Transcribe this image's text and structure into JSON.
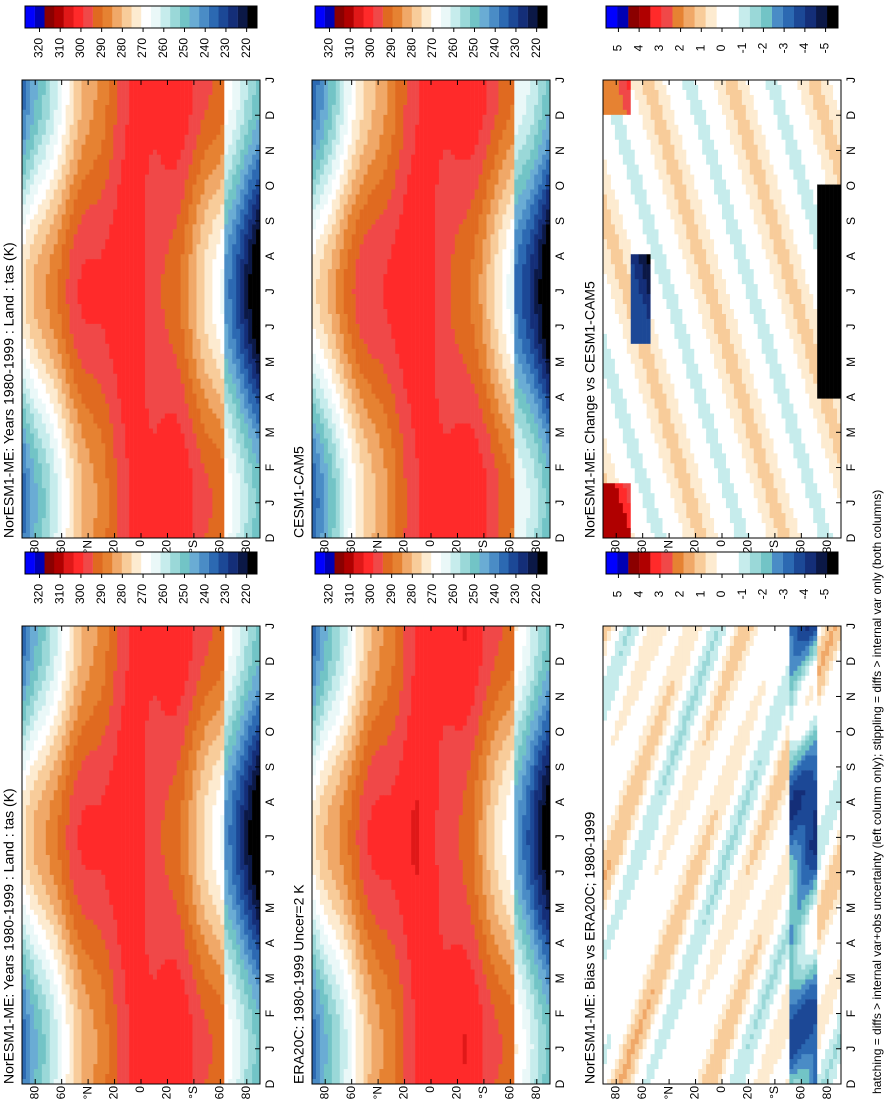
{
  "chart_data": [
    {
      "type": "contour",
      "title": "NorESM1-ME: Years 1980-1999 : Land : tas (K)",
      "categories": [
        "D",
        "J",
        "F",
        "M",
        "A",
        "M",
        "J",
        "J",
        "A",
        "S",
        "O",
        "N",
        "D",
        "J"
      ],
      "ylim": [
        -90,
        90
      ],
      "yticks": [
        {
          "value": 80,
          "label": "80"
        },
        {
          "value": 60,
          "label": "60"
        },
        {
          "value": 40,
          "label": "°N"
        },
        {
          "value": 20,
          "label": "20"
        },
        0,
        {
          "value": -20,
          "label": "20"
        },
        {
          "value": -40,
          "label": "°S"
        },
        {
          "value": -60,
          "label": "60"
        },
        {
          "value": -80,
          "label": "80"
        }
      ],
      "clim": [
        215,
        327
      ],
      "cticks": [
        320,
        310,
        300,
        290,
        280,
        270,
        260,
        250,
        240,
        230,
        220
      ],
      "colors": [
        "#000000",
        "#0b1846",
        "#142e78",
        "#1c4896",
        "#2c69b2",
        "#4a8cc6",
        "#6aacd4",
        "#72c4c6",
        "#9ad8d8",
        "#c6ecec",
        "#eaf8f8",
        "#ffffff",
        "#fdebd0",
        "#f8cc9a",
        "#f0a868",
        "#e68232",
        "#e06a20",
        "#f04848",
        "#ff2a2a",
        "#e01818",
        "#b00000",
        "#8b0000",
        "#0000b4",
        "#0000ff"
      ]
    },
    {
      "type": "contour",
      "title": "NorESM1-ME: Years 1980-1999 : Land : tas (K)",
      "categories": [
        "D",
        "J",
        "F",
        "M",
        "A",
        "M",
        "J",
        "J",
        "A",
        "S",
        "O",
        "N",
        "D",
        "J"
      ],
      "ylim": [
        -90,
        90
      ],
      "yticks": [
        {
          "value": 80,
          "label": "80"
        },
        {
          "value": 60,
          "label": "60"
        },
        {
          "value": 40,
          "label": "°N"
        },
        {
          "value": 20,
          "label": "20"
        },
        0,
        {
          "value": -20,
          "label": "20"
        },
        {
          "value": -40,
          "label": "°S"
        },
        {
          "value": -60,
          "label": "60"
        },
        {
          "value": -80,
          "label": "80"
        }
      ],
      "clim": [
        215,
        327
      ],
      "cticks": [
        320,
        310,
        300,
        290,
        280,
        270,
        260,
        250,
        240,
        230,
        220
      ],
      "colors": [
        "#000000",
        "#0b1846",
        "#142e78",
        "#1c4896",
        "#2c69b2",
        "#4a8cc6",
        "#6aacd4",
        "#72c4c6",
        "#9ad8d8",
        "#c6ecec",
        "#eaf8f8",
        "#ffffff",
        "#fdebd0",
        "#f8cc9a",
        "#f0a868",
        "#e68232",
        "#e06a20",
        "#f04848",
        "#ff2a2a",
        "#e01818",
        "#b00000",
        "#8b0000",
        "#0000b4",
        "#0000ff"
      ]
    },
    {
      "type": "contour",
      "title": "ERA20C: 1980-1999 Uncer=2 K",
      "categories": [
        "D",
        "J",
        "F",
        "M",
        "A",
        "M",
        "J",
        "J",
        "A",
        "S",
        "O",
        "N",
        "D",
        "J"
      ],
      "ylim": [
        -90,
        90
      ],
      "yticks": [
        {
          "value": 80,
          "label": "80"
        },
        {
          "value": 60,
          "label": "60"
        },
        {
          "value": 40,
          "label": "°N"
        },
        {
          "value": 20,
          "label": "20"
        },
        0,
        {
          "value": -20,
          "label": "20"
        },
        {
          "value": -40,
          "label": "°S"
        },
        {
          "value": -60,
          "label": "60"
        },
        {
          "value": -80,
          "label": "80"
        }
      ],
      "clim": [
        215,
        327
      ],
      "cticks": [
        320,
        310,
        300,
        290,
        280,
        270,
        260,
        250,
        240,
        230,
        220
      ],
      "colors": [
        "#000000",
        "#0b1846",
        "#142e78",
        "#1c4896",
        "#2c69b2",
        "#4a8cc6",
        "#6aacd4",
        "#72c4c6",
        "#9ad8d8",
        "#c6ecec",
        "#eaf8f8",
        "#ffffff",
        "#fdebd0",
        "#f8cc9a",
        "#f0a868",
        "#e68232",
        "#e06a20",
        "#f04848",
        "#ff2a2a",
        "#e01818",
        "#b00000",
        "#8b0000",
        "#0000b4",
        "#0000ff"
      ]
    },
    {
      "type": "contour",
      "title": "CESM1-CAM5",
      "categories": [
        "D",
        "J",
        "F",
        "M",
        "A",
        "M",
        "J",
        "J",
        "A",
        "S",
        "O",
        "N",
        "D",
        "J"
      ],
      "ylim": [
        -90,
        90
      ],
      "yticks": [
        {
          "value": 80,
          "label": "80"
        },
        {
          "value": 60,
          "label": "60"
        },
        {
          "value": 40,
          "label": "°N"
        },
        {
          "value": 20,
          "label": "20"
        },
        0,
        {
          "value": -20,
          "label": "20"
        },
        {
          "value": -40,
          "label": "°S"
        },
        {
          "value": -60,
          "label": "60"
        },
        {
          "value": -80,
          "label": "80"
        }
      ],
      "clim": [
        215,
        327
      ],
      "cticks": [
        320,
        310,
        300,
        290,
        280,
        270,
        260,
        250,
        240,
        230,
        220
      ],
      "colors": [
        "#000000",
        "#0b1846",
        "#142e78",
        "#1c4896",
        "#2c69b2",
        "#4a8cc6",
        "#6aacd4",
        "#72c4c6",
        "#9ad8d8",
        "#c6ecec",
        "#eaf8f8",
        "#ffffff",
        "#fdebd0",
        "#f8cc9a",
        "#f0a868",
        "#e68232",
        "#e06a20",
        "#f04848",
        "#ff2a2a",
        "#e01818",
        "#b00000",
        "#8b0000",
        "#0000b4",
        "#0000ff"
      ]
    },
    {
      "type": "contour",
      "title": "NorESM1-ME: Bias vs ERA20C; 1980-1999",
      "categories": [
        "D",
        "J",
        "F",
        "M",
        "A",
        "M",
        "J",
        "J",
        "A",
        "S",
        "O",
        "N",
        "D",
        "J"
      ],
      "ylim": [
        -90,
        90
      ],
      "yticks": [
        {
          "value": 80,
          "label": "80"
        },
        {
          "value": 60,
          "label": "60"
        },
        {
          "value": 40,
          "label": "°N"
        },
        {
          "value": 20,
          "label": "20"
        },
        0,
        {
          "value": -20,
          "label": "20"
        },
        {
          "value": -40,
          "label": "°S"
        },
        {
          "value": -60,
          "label": "60"
        },
        {
          "value": -80,
          "label": "80"
        }
      ],
      "clim": [
        -5.6,
        5.6
      ],
      "cticks": [
        5,
        4,
        3,
        2,
        1,
        0,
        -1,
        -2,
        -3,
        -4,
        -5
      ],
      "colors": [
        "#000000",
        "#0b1846",
        "#142e78",
        "#1c4896",
        "#2c69b2",
        "#4a8cc6",
        "#72c4c6",
        "#9ad8d8",
        "#c6ecec",
        "#ffffff",
        "#ffffff",
        "#fdebd0",
        "#f8cc9a",
        "#f0a868",
        "#e68232",
        "#f04848",
        "#ff2a2a",
        "#b00000",
        "#8b0000",
        "#0000b4",
        "#0000ff"
      ]
    },
    {
      "type": "contour",
      "title": "NorESM1-ME: Change vs CESM1-CAM5",
      "categories": [
        "D",
        "J",
        "F",
        "M",
        "A",
        "M",
        "J",
        "J",
        "A",
        "S",
        "O",
        "N",
        "D",
        "J"
      ],
      "ylim": [
        -90,
        90
      ],
      "yticks": [
        {
          "value": 80,
          "label": "80"
        },
        {
          "value": 60,
          "label": "60"
        },
        {
          "value": 40,
          "label": "°N"
        },
        {
          "value": 20,
          "label": "20"
        },
        0,
        {
          "value": -20,
          "label": "20"
        },
        {
          "value": -40,
          "label": "°S"
        },
        {
          "value": -60,
          "label": "60"
        },
        {
          "value": -80,
          "label": "80"
        }
      ],
      "clim": [
        -5.6,
        5.6
      ],
      "cticks": [
        5,
        4,
        3,
        2,
        1,
        0,
        -1,
        -2,
        -3,
        -4,
        -5
      ],
      "colors": [
        "#000000",
        "#0b1846",
        "#142e78",
        "#1c4896",
        "#2c69b2",
        "#4a8cc6",
        "#72c4c6",
        "#9ad8d8",
        "#c6ecec",
        "#ffffff",
        "#ffffff",
        "#fdebd0",
        "#f8cc9a",
        "#f0a868",
        "#e68232",
        "#f04848",
        "#ff2a2a",
        "#b00000",
        "#8b0000",
        "#0000b4",
        "#0000ff"
      ]
    }
  ],
  "caption": "hatching = diffs > internal var+obs uncertainty (left column only); stippling = diffs > internal var only (both columns)"
}
